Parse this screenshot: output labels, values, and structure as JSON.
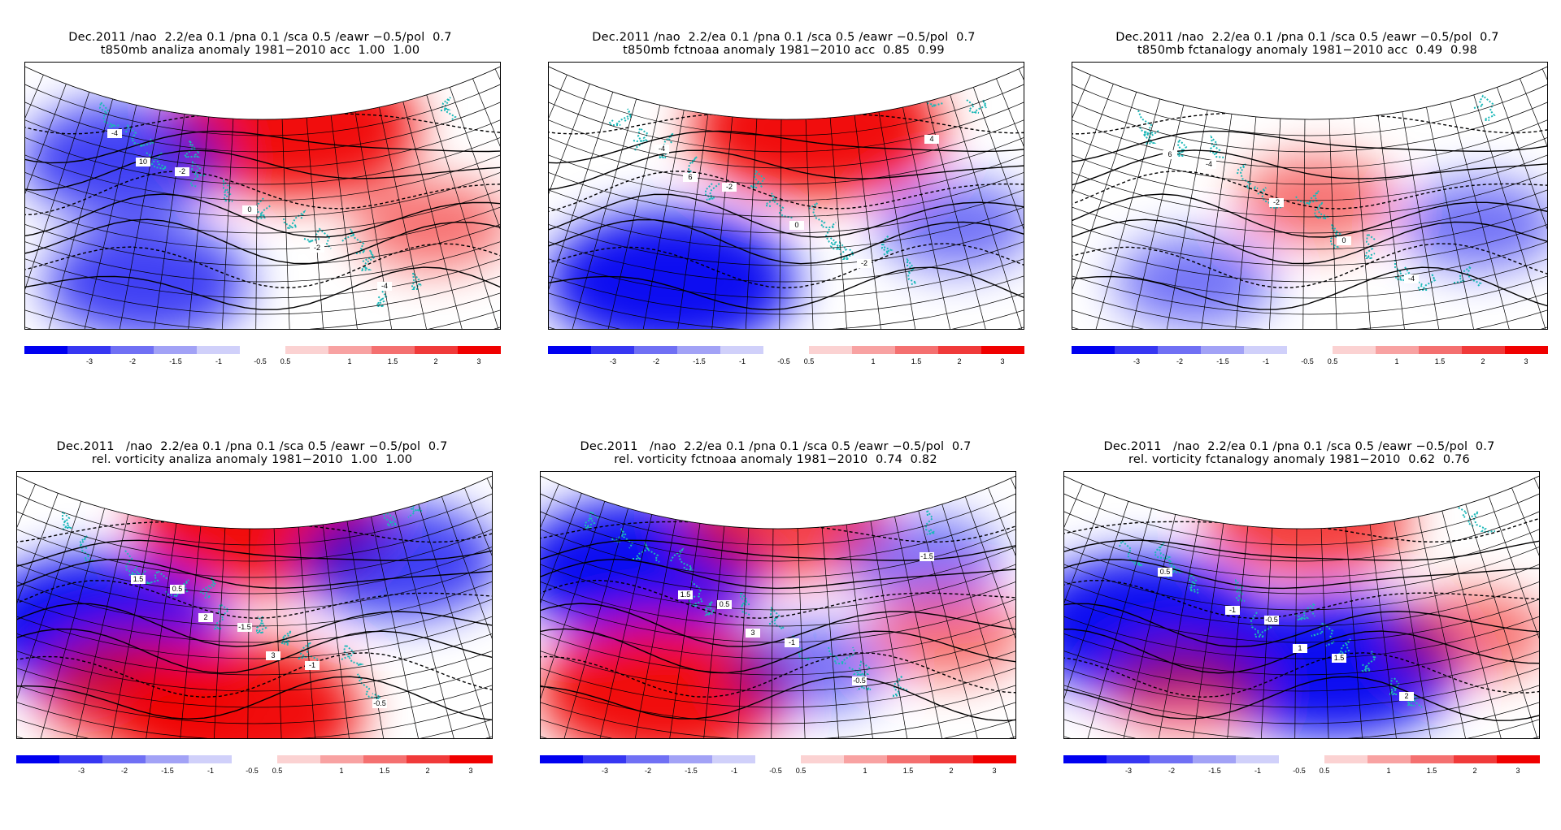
{
  "panels": [
    {
      "title_line1": "Dec.2011 /nao  2.2/ea 0.1 /pna 0.1 /sca 0.5 /eawr −0.5/pol  0.7",
      "title_line2": "t850mb analiza anomaly 1981−2010 acc  1.00  1.00",
      "field": "t850mb",
      "source": "analiza",
      "scores": [
        1.0,
        1.0
      ],
      "anomaly_centers": [
        {
          "sign": "positive",
          "region": "north-center",
          "strength": 3
        },
        {
          "sign": "positive",
          "region": "east",
          "strength": 1
        },
        {
          "sign": "negative",
          "region": "northwest",
          "strength": 2
        },
        {
          "sign": "negative",
          "region": "southwest",
          "strength": 2
        }
      ],
      "contour_labels": [
        "-4",
        "-2",
        "0",
        "-2",
        "-4",
        "10"
      ]
    },
    {
      "title_line1": "Dec.2011 /nao  2.2/ea 0.1 /pna 0.1 /sca 0.5 /eawr −0.5/pol  0.7",
      "title_line2": "t850mb fctnoaa anomaly 1981−2010 acc  0.85  0.99",
      "field": "t850mb",
      "source": "fctnoaa",
      "scores": [
        0.85,
        0.99
      ],
      "anomaly_centers": [
        {
          "sign": "positive",
          "region": "north-center",
          "strength": 3
        },
        {
          "sign": "negative",
          "region": "southwest",
          "strength": 3
        },
        {
          "sign": "negative",
          "region": "east",
          "strength": 1
        }
      ],
      "contour_labels": [
        "-4",
        "-2",
        "0",
        "-2",
        "4",
        "6"
      ]
    },
    {
      "title_line1": "Dec.2011 /nao  2.2/ea 0.1 /pna 0.1 /sca 0.5 /eawr −0.5/pol  0.7",
      "title_line2": "t850mb fctanalogy anomaly 1981−2010 acc  0.49  0.98",
      "field": "t850mb",
      "source": "fctanalogy",
      "scores": [
        0.49,
        0.98
      ],
      "anomaly_centers": [
        {
          "sign": "positive",
          "region": "center",
          "strength": 1
        },
        {
          "sign": "negative",
          "region": "east",
          "strength": 1
        },
        {
          "sign": "negative",
          "region": "southwest",
          "strength": 1
        }
      ],
      "contour_labels": [
        "-4",
        "-2",
        "0",
        "-4",
        "6"
      ]
    },
    {
      "title_line1": "Dec.2011   /nao  2.2/ea 0.1 /pna 0.1 /sca 0.5 /eawr −0.5/pol  0.7",
      "title_line2": "rel. vorticity analiza anomaly 1981−2010  1.00  1.00",
      "field": "rel. vorticity",
      "source": "analiza",
      "scores": [
        1.0,
        1.0
      ],
      "anomaly_centers": [
        {
          "sign": "positive",
          "region": "north",
          "strength": 3
        },
        {
          "sign": "negative",
          "region": "west",
          "strength": 3
        },
        {
          "sign": "negative",
          "region": "northeast",
          "strength": 2
        },
        {
          "sign": "positive",
          "region": "south",
          "strength": 3
        },
        {
          "sign": "positive",
          "region": "southwest",
          "strength": 2
        }
      ],
      "contour_labels": [
        "0.5",
        "-1.5",
        "-1",
        "-0.5",
        "1.5",
        "2",
        "3"
      ]
    },
    {
      "title_line1": "Dec.2011   /nao  2.2/ea 0.1 /pna 0.1 /sca 0.5 /eawr −0.5/pol  0.7",
      "title_line2": "rel. vorticity fctnoaa anomaly 1981−2010  0.74  0.82",
      "field": "rel. vorticity",
      "source": "fctnoaa",
      "scores": [
        0.74,
        0.82
      ],
      "anomaly_centers": [
        {
          "sign": "negative",
          "region": "northwest",
          "strength": 3
        },
        {
          "sign": "positive",
          "region": "north",
          "strength": 2
        },
        {
          "sign": "negative",
          "region": "northeast",
          "strength": 1
        },
        {
          "sign": "positive",
          "region": "southwest",
          "strength": 3
        },
        {
          "sign": "negative",
          "region": "south-center",
          "strength": 1
        },
        {
          "sign": "positive",
          "region": "east",
          "strength": 1
        }
      ],
      "contour_labels": [
        "0.5",
        "-1",
        "-0.5",
        "-1.5",
        "1.5",
        "3"
      ]
    },
    {
      "title_line1": "Dec.2011   /nao  2.2/ea 0.1 /pna 0.1 /sca 0.5 /eawr −0.5/pol  0.7",
      "title_line2": "rel. vorticity fctanalogy anomaly 1981−2010  0.62  0.76",
      "field": "rel. vorticity",
      "source": "fctanalogy",
      "scores": [
        0.62,
        0.76
      ],
      "anomaly_centers": [
        {
          "sign": "positive",
          "region": "north",
          "strength": 2
        },
        {
          "sign": "negative",
          "region": "west",
          "strength": 3
        },
        {
          "sign": "negative",
          "region": "south-center",
          "strength": 3
        },
        {
          "sign": "positive",
          "region": "southwest",
          "strength": 1
        },
        {
          "sign": "positive",
          "region": "east",
          "strength": 1
        }
      ],
      "contour_labels": [
        "-0.5",
        "1.5",
        "2",
        "0.5",
        "-1",
        "1"
      ]
    }
  ],
  "colorbar": {
    "labels": [
      "-3",
      "-2",
      "-1.5",
      "-1",
      "-0.5",
      "0.5",
      "1",
      "1.5",
      "2",
      "3"
    ],
    "colors": [
      "#0000f0",
      "#3737f2",
      "#7070f4",
      "#a2a2f6",
      "#d0d0fa",
      "#fbd2d2",
      "#f8a2a2",
      "#f47070",
      "#f03a3a",
      "#f00000"
    ]
  },
  "colors": {
    "positive": "#f00000",
    "negative": "#0000f0",
    "coastline": "#1bb8b8",
    "grid": "#000000"
  }
}
